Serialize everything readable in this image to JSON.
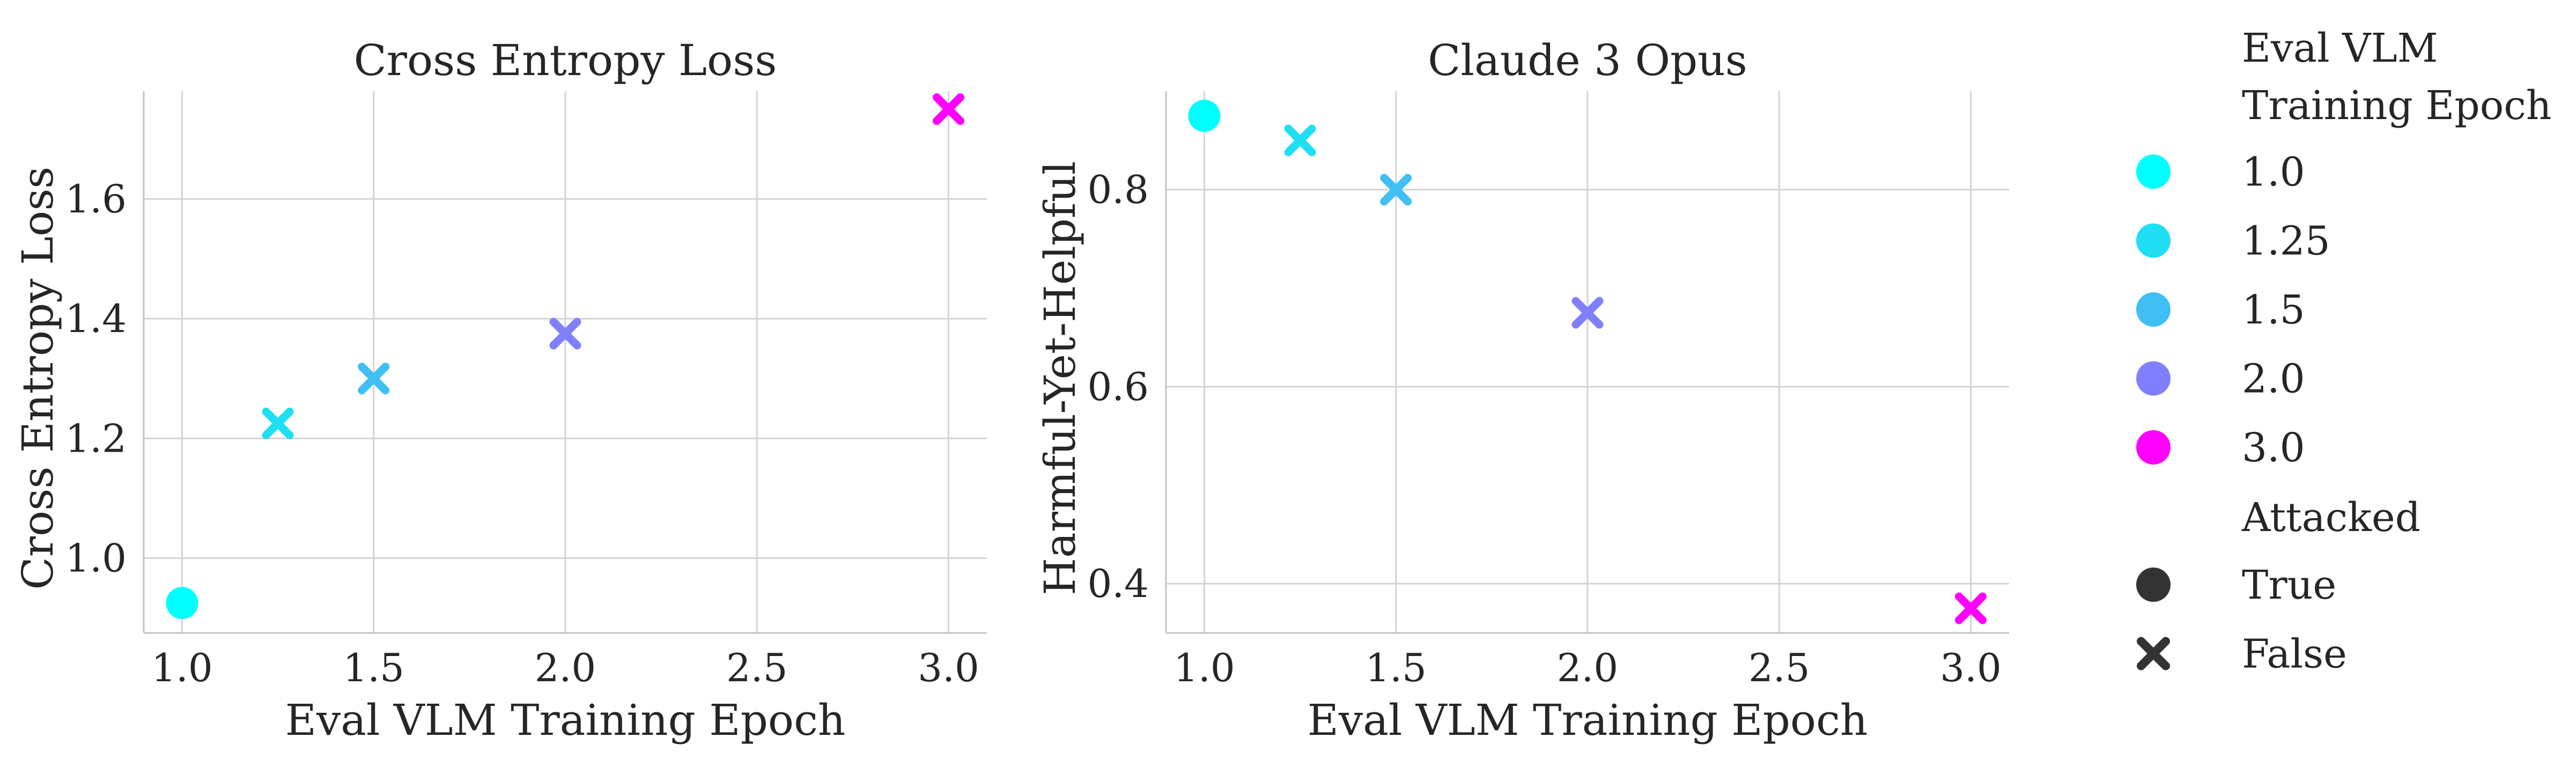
{
  "chart_data": [
    {
      "type": "scatter",
      "title": "Cross Entropy Loss",
      "xlabel": "Eval VLM Training Epoch",
      "ylabel": "Cross Entropy Loss",
      "xlim": [
        0.9,
        3.1
      ],
      "ylim": [
        0.875,
        1.78
      ],
      "xticks": [
        "1.0",
        "1.5",
        "2.0",
        "2.5",
        "3.0"
      ],
      "yticks": [
        "1.0",
        "1.2",
        "1.4",
        "1.6"
      ],
      "grid": true,
      "points": [
        {
          "x": 1.0,
          "y": 0.925,
          "epoch": "1.0",
          "attacked": "True"
        },
        {
          "x": 1.25,
          "y": 1.225,
          "epoch": "1.25",
          "attacked": "False"
        },
        {
          "x": 1.5,
          "y": 1.3,
          "epoch": "1.5",
          "attacked": "False"
        },
        {
          "x": 2.0,
          "y": 1.375,
          "epoch": "2.0",
          "attacked": "False"
        },
        {
          "x": 3.0,
          "y": 1.75,
          "epoch": "3.0",
          "attacked": "False"
        }
      ]
    },
    {
      "type": "scatter",
      "title": "Claude 3 Opus",
      "xlabel": "Eval VLM Training Epoch",
      "ylabel": "Harmful-Yet-Helpful",
      "xlim": [
        0.9,
        3.1
      ],
      "ylim": [
        0.35,
        0.9
      ],
      "xticks": [
        "1.0",
        "1.5",
        "2.0",
        "2.5",
        "3.0"
      ],
      "yticks": [
        "0.4",
        "0.6",
        "0.8"
      ],
      "grid": true,
      "points": [
        {
          "x": 1.0,
          "y": 0.875,
          "epoch": "1.0",
          "attacked": "True"
        },
        {
          "x": 1.25,
          "y": 0.85,
          "epoch": "1.25",
          "attacked": "False"
        },
        {
          "x": 1.5,
          "y": 0.8,
          "epoch": "1.5",
          "attacked": "False"
        },
        {
          "x": 2.0,
          "y": 0.675,
          "epoch": "2.0",
          "attacked": "False"
        },
        {
          "x": 3.0,
          "y": 0.375,
          "epoch": "3.0",
          "attacked": "False"
        }
      ]
    }
  ],
  "legend": {
    "placement": "right",
    "hue_title_lines": [
      "Eval VLM",
      "Training Epoch"
    ],
    "hue_entries": [
      {
        "label": "1.0",
        "color": "#00ffff"
      },
      {
        "label": "1.25",
        "color": "#20dff5"
      },
      {
        "label": "1.5",
        "color": "#40bff5"
      },
      {
        "label": "2.0",
        "color": "#8080ff"
      },
      {
        "label": "3.0",
        "color": "#ff00ff"
      }
    ],
    "style_title": "Attacked",
    "style_entries": [
      {
        "label": "True",
        "marker": "circle"
      },
      {
        "label": "False",
        "marker": "x"
      }
    ],
    "marker_color": "#333333"
  }
}
